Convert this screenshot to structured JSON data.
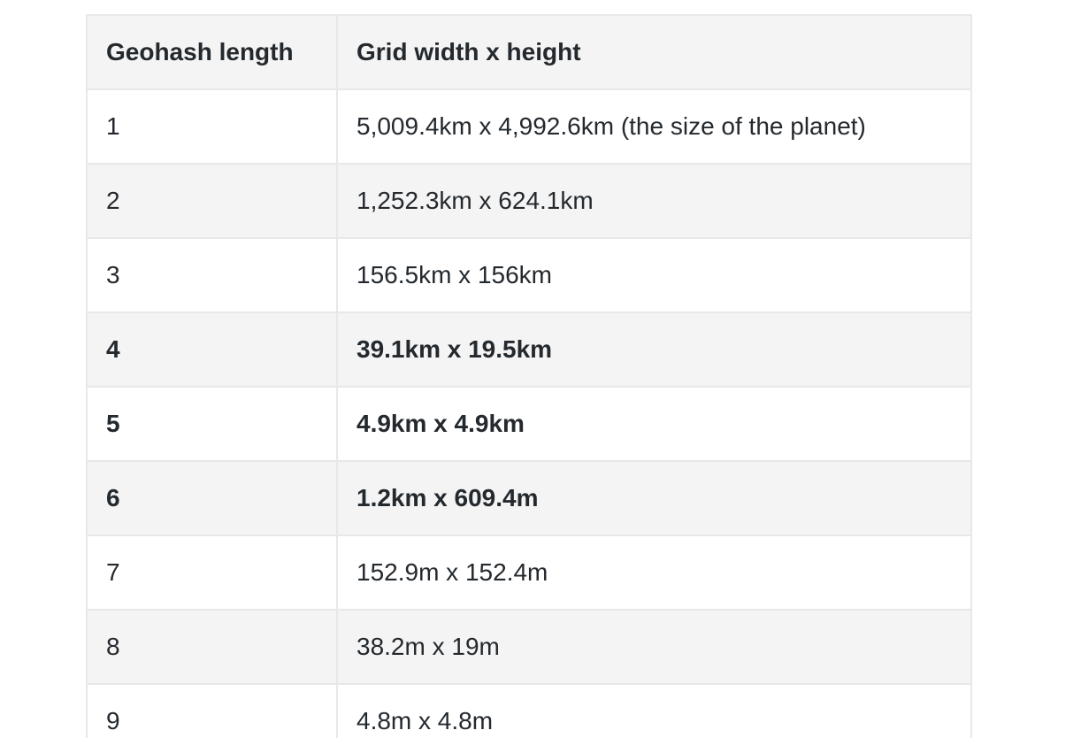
{
  "table": {
    "headers": [
      "Geohash length",
      "Grid width x height"
    ],
    "rows": [
      {
        "length": "1",
        "grid": "5,009.4km x 4,992.6km (the size of the planet)",
        "bold": false
      },
      {
        "length": "2",
        "grid": "1,252.3km x 624.1km",
        "bold": false
      },
      {
        "length": "3",
        "grid": "156.5km x 156km",
        "bold": false
      },
      {
        "length": "4",
        "grid": "39.1km x 19.5km",
        "bold": true
      },
      {
        "length": "5",
        "grid": "4.9km x 4.9km",
        "bold": true
      },
      {
        "length": "6",
        "grid": "1.2km x 609.4m",
        "bold": true
      },
      {
        "length": "7",
        "grid": "152.9m x 152.4m",
        "bold": false
      },
      {
        "length": "8",
        "grid": "38.2m x 19m",
        "bold": false
      },
      {
        "length": "9",
        "grid": "4.8m x 4.8m",
        "bold": false
      }
    ]
  }
}
